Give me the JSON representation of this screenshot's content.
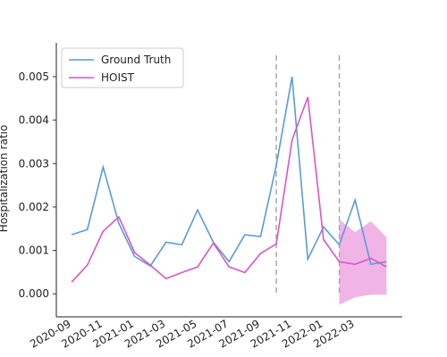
{
  "chart_data": {
    "type": "line",
    "ylabel": "Hospitalization ratio",
    "categories": [
      "2020-09",
      null,
      "2020-11",
      null,
      "2021-01",
      null,
      "2021-03",
      null,
      "2021-05",
      null,
      "2021-07",
      null,
      "2021-09",
      null,
      "2021-11",
      null,
      "2022-01",
      null,
      "2022-03",
      null,
      null
    ],
    "series": [
      {
        "name": "Ground Truth",
        "color": "#5b9bd5",
        "values": [
          0.00136,
          0.00148,
          0.00292,
          0.00162,
          0.00086,
          0.00064,
          0.00119,
          0.00113,
          0.00193,
          0.00119,
          0.00074,
          0.00136,
          0.00132,
          0.00296,
          0.005,
          0.0008,
          0.00154,
          0.00113,
          0.00216,
          0.00068,
          0.00074
        ]
      },
      {
        "name": "HOIST",
        "color": "#d957c5",
        "values": [
          0.00027,
          0.00066,
          0.00144,
          0.00177,
          0.00095,
          0.00066,
          0.00035,
          0.00049,
          0.00062,
          0.00117,
          0.00062,
          0.00049,
          0.00093,
          0.00115,
          0.00354,
          0.00453,
          0.00125,
          0.00074,
          0.00068,
          0.00082,
          0.00062
        ]
      }
    ],
    "band": {
      "color": "#f0b4e6",
      "upper": [
        null,
        null,
        null,
        null,
        null,
        null,
        null,
        null,
        null,
        null,
        null,
        null,
        null,
        null,
        null,
        null,
        null,
        0.00171,
        0.00142,
        0.00167,
        0.0013
      ],
      "lower": [
        null,
        null,
        null,
        null,
        null,
        null,
        null,
        null,
        null,
        null,
        null,
        null,
        null,
        null,
        null,
        null,
        null,
        -0.00025,
        -8e-05,
        -2e-05,
        -2e-05
      ]
    },
    "vlines": [
      13,
      17
    ],
    "xlim": [
      -0.97,
      21.0
    ],
    "ylim": [
      -0.00053,
      0.00578
    ],
    "yticks": [
      {
        "value": 0,
        "label": "0.000"
      },
      {
        "value": 0.001,
        "label": "0.001"
      },
      {
        "value": 0.002,
        "label": "0.002"
      },
      {
        "value": 0.003,
        "label": "0.003"
      },
      {
        "value": 0.004,
        "label": "0.004"
      },
      {
        "value": 0.005,
        "label": "0.005"
      }
    ],
    "legend": "upper left"
  }
}
